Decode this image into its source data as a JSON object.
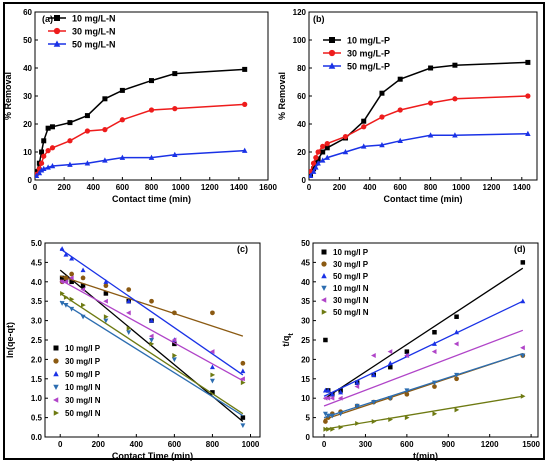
{
  "chart_data": [
    {
      "id": "a",
      "type": "line",
      "panel_label": "(a)",
      "xlabel": "Contact time (min)",
      "ylabel": "% Removal",
      "xlim": [
        0,
        1600
      ],
      "ylim": [
        0,
        60
      ],
      "xticks": [
        0,
        200,
        400,
        600,
        800,
        1000,
        1200,
        1400,
        1600
      ],
      "yticks": [
        0,
        10,
        20,
        30,
        40,
        50,
        60
      ],
      "legend_position": "top-left",
      "x": [
        10,
        30,
        45,
        60,
        90,
        120,
        240,
        360,
        480,
        600,
        800,
        960,
        1440
      ],
      "series": [
        {
          "name": "10 mg/L-N",
          "color": "#000000",
          "marker": "square",
          "values": [
            3,
            6,
            10,
            14,
            18.5,
            19,
            20.5,
            23,
            29,
            32,
            35.5,
            38,
            39.5
          ]
        },
        {
          "name": "30 mg/L-N",
          "color": "#ee1c1c",
          "marker": "circle",
          "values": [
            2,
            4,
            6,
            8.5,
            10.5,
            11.5,
            14,
            17.5,
            18,
            21.5,
            25,
            25.5,
            27
          ]
        },
        {
          "name": "50 mg/L-N",
          "color": "#1a32e6",
          "marker": "triangle-up",
          "values": [
            1.5,
            2.5,
            3.5,
            4,
            4.5,
            5,
            5.5,
            6,
            7,
            8,
            8,
            9,
            10.5
          ]
        }
      ]
    },
    {
      "id": "b",
      "type": "line",
      "panel_label": "(b)",
      "xlabel": "Contact time (min)",
      "ylabel": "% Removal",
      "xlim": [
        0,
        1500
      ],
      "ylim": [
        0,
        120
      ],
      "xticks": [
        0,
        200,
        400,
        600,
        800,
        1000,
        1200,
        1400
      ],
      "yticks": [
        0,
        20,
        40,
        60,
        80,
        100,
        120
      ],
      "legend_position": "top-left",
      "x": [
        10,
        30,
        45,
        60,
        90,
        120,
        240,
        360,
        480,
        600,
        800,
        960,
        1440
      ],
      "series": [
        {
          "name": "10 mg/L-P",
          "color": "#000000",
          "marker": "square",
          "values": [
            4,
            8,
            12,
            15,
            20,
            23,
            30,
            42,
            62,
            72,
            80,
            82,
            84
          ]
        },
        {
          "name": "30 mg/L-P",
          "color": "#ee1c1c",
          "marker": "circle",
          "values": [
            6,
            12,
            16,
            20,
            24,
            26,
            31,
            38,
            45,
            50,
            55,
            58,
            60
          ]
        },
        {
          "name": "50 mg/L-P",
          "color": "#1a32e6",
          "marker": "triangle-up",
          "values": [
            3,
            6,
            9,
            12,
            14,
            16,
            20,
            24,
            25,
            28,
            32,
            32,
            33
          ]
        }
      ]
    },
    {
      "id": "c",
      "type": "scatter",
      "panel_label": "(c)",
      "xlabel": "Contact Time (min)",
      "ylabel": "ln(qe-qt)",
      "xlim": [
        -80,
        1050
      ],
      "ylim": [
        0,
        5.0
      ],
      "xticks": [
        0,
        200,
        400,
        600,
        800,
        1000
      ],
      "yticks": [
        0.0,
        0.5,
        1.0,
        1.5,
        2.0,
        2.5,
        3.0,
        3.5,
        4.0,
        4.5,
        5.0
      ],
      "legend_position": "bottom-left",
      "series": [
        {
          "name": "10 mg/l P",
          "color": "#000000",
          "marker": "square",
          "x": [
            10,
            30,
            60,
            120,
            240,
            360,
            480,
            600,
            800,
            960
          ],
          "y": [
            4.1,
            4.05,
            4.0,
            3.9,
            3.7,
            3.5,
            3.0,
            2.4,
            1.15,
            0.5
          ],
          "fit": [
            4.3,
            0.4
          ]
        },
        {
          "name": "30 mg/l P",
          "color": "#8b5a12",
          "marker": "circle",
          "x": [
            10,
            30,
            60,
            120,
            240,
            360,
            480,
            600,
            800,
            960
          ],
          "y": [
            4.0,
            4.1,
            4.2,
            4.1,
            3.9,
            3.8,
            3.5,
            3.2,
            3.2,
            1.9
          ],
          "fit": [
            4.15,
            2.6
          ]
        },
        {
          "name": "50 mg/l P",
          "color": "#1a32e6",
          "marker": "triangle-up",
          "x": [
            10,
            30,
            60,
            120,
            240,
            360,
            480,
            600,
            800,
            960
          ],
          "y": [
            4.85,
            4.7,
            4.6,
            4.3,
            4.0,
            3.5,
            3.0,
            2.5,
            1.8,
            1.7
          ],
          "fit": [
            4.85,
            1.6
          ]
        },
        {
          "name": "10 mg/l N",
          "color": "#2c6db0",
          "marker": "triangle-down",
          "x": [
            10,
            30,
            60,
            120,
            240,
            360,
            480,
            600,
            800,
            960
          ],
          "y": [
            3.45,
            3.4,
            3.3,
            3.1,
            3.0,
            2.7,
            2.5,
            2.0,
            1.45,
            0.3
          ],
          "fit": [
            3.5,
            0.55
          ]
        },
        {
          "name": "30 mg/l N",
          "color": "#b044c8",
          "marker": "triangle-left",
          "x": [
            10,
            30,
            60,
            120,
            240,
            360,
            480,
            600,
            800,
            960
          ],
          "y": [
            4.0,
            4.0,
            4.1,
            3.8,
            3.5,
            3.2,
            2.6,
            2.5,
            2.2,
            1.5
          ],
          "fit": [
            4.05,
            1.45
          ]
        },
        {
          "name": "50 mg/l N",
          "color": "#6e7a12",
          "marker": "triangle-right",
          "x": [
            10,
            30,
            60,
            120,
            240,
            360,
            480,
            600,
            800,
            960
          ],
          "y": [
            3.7,
            3.6,
            3.55,
            3.4,
            3.1,
            2.8,
            2.4,
            2.1,
            1.6,
            1.4
          ],
          "fit": [
            3.7,
            0.6
          ]
        }
      ]
    },
    {
      "id": "d",
      "type": "scatter",
      "panel_label": "(d)",
      "xlabel": "t(min)",
      "ylabel": "t/q",
      "ylabel_sub": "t",
      "xlim": [
        -80,
        1550
      ],
      "ylim": [
        0,
        50
      ],
      "xticks": [
        0,
        300,
        600,
        900,
        1200,
        1500
      ],
      "yticks": [
        0,
        5,
        10,
        15,
        20,
        25,
        30,
        35,
        40,
        45,
        50
      ],
      "legend_position": "top-left",
      "series": [
        {
          "name": "10 mg/l P",
          "color": "#000000",
          "marker": "square",
          "x": [
            10,
            30,
            60,
            120,
            240,
            360,
            480,
            600,
            800,
            960,
            1440
          ],
          "y": [
            25,
            12,
            11,
            12,
            14,
            16,
            18,
            22,
            27,
            31,
            45
          ],
          "fit": [
            9.8,
            43.5
          ]
        },
        {
          "name": "30 mg/l P",
          "color": "#8b5a12",
          "marker": "circle",
          "x": [
            10,
            30,
            60,
            120,
            240,
            360,
            480,
            600,
            800,
            960,
            1440
          ],
          "y": [
            4,
            5,
            6,
            6.5,
            8,
            9,
            10,
            11,
            13,
            15,
            21
          ],
          "fit": [
            4.5,
            21.5
          ]
        },
        {
          "name": "50 mg/l P",
          "color": "#1a32e6",
          "marker": "triangle-up",
          "x": [
            10,
            30,
            60,
            120,
            240,
            360,
            480,
            600,
            800,
            960,
            1440
          ],
          "y": [
            12,
            12,
            11,
            11.5,
            14,
            16,
            19,
            21,
            24,
            27,
            35
          ],
          "fit": [
            10.5,
            35
          ]
        },
        {
          "name": "10 mg/l N",
          "color": "#2c6db0",
          "marker": "triangle-down",
          "x": [
            10,
            30,
            60,
            120,
            240,
            360,
            480,
            600,
            800,
            960,
            1440
          ],
          "y": [
            6,
            5.5,
            5.5,
            6,
            8,
            9,
            10,
            12,
            14,
            16,
            21
          ],
          "fit": [
            5,
            21.5
          ]
        },
        {
          "name": "30 mg/l N",
          "color": "#b044c8",
          "marker": "triangle-left",
          "x": [
            10,
            30,
            60,
            120,
            240,
            360,
            480,
            600,
            800,
            960,
            1440
          ],
          "y": [
            10,
            10,
            10,
            10,
            13,
            21,
            22,
            21,
            22,
            24,
            23
          ],
          "fit": [
            8,
            27.5
          ]
        },
        {
          "name": "50 mg/l N",
          "color": "#6e7a12",
          "marker": "triangle-right",
          "x": [
            10,
            30,
            60,
            120,
            240,
            360,
            480,
            600,
            800,
            960,
            1440
          ],
          "y": [
            2,
            2,
            2,
            2.5,
            3.5,
            4,
            4.5,
            5,
            6,
            7,
            10.5
          ],
          "fit": [
            2,
            10.5
          ]
        }
      ]
    }
  ]
}
